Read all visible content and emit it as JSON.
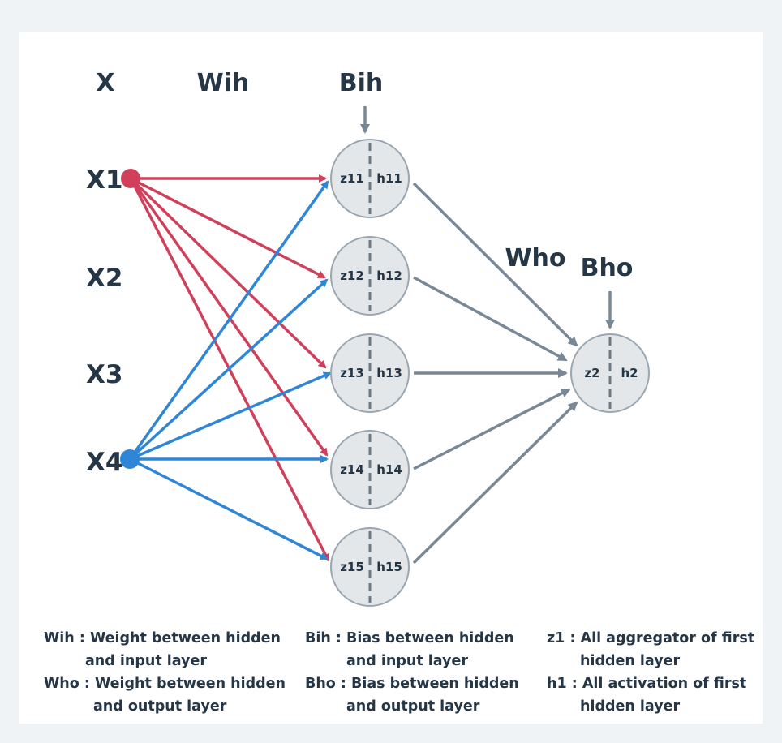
{
  "headers": {
    "x": "X",
    "wih": "Wih",
    "bih": "Bih",
    "who": "Who",
    "bho": "Bho"
  },
  "inputs": [
    "X1",
    "X2",
    "X3",
    "X4"
  ],
  "hidden_nodes": [
    {
      "z": "z11",
      "h": "h11"
    },
    {
      "z": "z12",
      "h": "h12"
    },
    {
      "z": "z13",
      "h": "h13"
    },
    {
      "z": "z14",
      "h": "h14"
    },
    {
      "z": "z15",
      "h": "h15"
    }
  ],
  "output_node": {
    "z": "z2",
    "h": "h2"
  },
  "colors": {
    "x1_edges": "#d0405a",
    "x4_edges": "#2f86d6",
    "out_edges": "#788896",
    "node_fill": "#e3e7ea",
    "node_stroke": "#9aa6b0",
    "text": "#253646"
  },
  "legend": {
    "wih": {
      "line1": "Wih : Weight between hidden",
      "line2": "and input layer"
    },
    "who": {
      "line1": "Who : Weight between hidden",
      "line2": "and output layer"
    },
    "bih": {
      "line1": "Bih : Bias between hidden",
      "line2": "and input layer"
    },
    "bho": {
      "line1": "Bho : Bias between hidden",
      "line2": "and output layer"
    },
    "z1": {
      "line1": "z1 : All aggregator of first",
      "line2": "hidden layer"
    },
    "h1": {
      "line1": "h1 : All activation of first",
      "line2": "hidden layer"
    }
  }
}
